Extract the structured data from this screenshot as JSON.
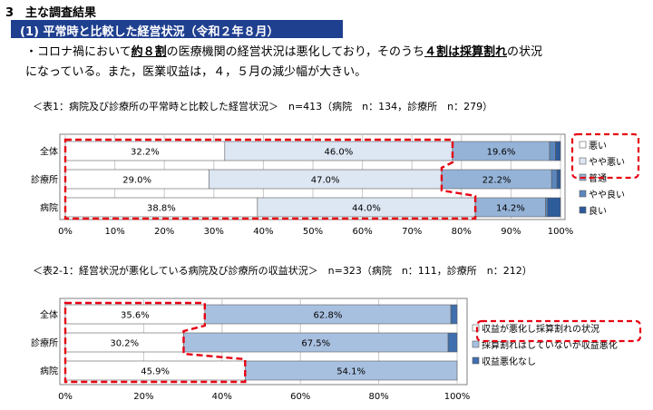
{
  "section": {
    "title": "3　主な調査結果"
  },
  "subheading": "(1) 平常時と比較した経営状況（令和２年８月）",
  "summary": {
    "line1_parts": [
      "・コロナ禍において",
      "約８割",
      "の医療機関の経営状況は悪化しており，そのうち",
      "４割は採算割れ",
      "の状況"
    ],
    "line2": "になっている。また，医業収益は，４，５月の減少幅が大きい。"
  },
  "chart_data": [
    {
      "type": "bar",
      "orientation": "horizontal",
      "stacked": true,
      "title": "＜表1：病院及び診療所の平常時と比較した経営状況＞　n=413（病院　n：134，診療所　n：279）",
      "categories": [
        "全体",
        "診療所",
        "病院"
      ],
      "series": [
        {
          "name": "悪い",
          "color": "#ffffff",
          "values": [
            32.2,
            29.0,
            38.8
          ]
        },
        {
          "name": "やや悪い",
          "color": "#dde6f3",
          "values": [
            46.0,
            47.0,
            44.0
          ]
        },
        {
          "name": "普通",
          "color": "#95b3d7",
          "values": [
            19.6,
            22.2,
            14.2
          ]
        },
        {
          "name": "やや良い",
          "color": "#5b86bd",
          "values": [
            1.2,
            1.1,
            0.4
          ]
        },
        {
          "name": "良い",
          "color": "#2e5b9a",
          "values": [
            1.0,
            0.7,
            2.6
          ]
        }
      ],
      "data_labels": [
        [
          "32.2%",
          "46.0%",
          "19.6%"
        ],
        [
          "29.0%",
          "47.0%",
          "22.2%"
        ],
        [
          "38.8%",
          "44.0%",
          "14.2%"
        ]
      ],
      "xlim": [
        0,
        100
      ],
      "xticks": [
        "0%",
        "10%",
        "20%",
        "30%",
        "40%",
        "50%",
        "60%",
        "70%",
        "80%",
        "90%",
        "100%"
      ],
      "grid": true,
      "legend": "right",
      "highlight": "red-dashed outline around 悪い + やや悪い (bars and legend)"
    },
    {
      "type": "bar",
      "orientation": "horizontal",
      "stacked": true,
      "title": "＜表2-1：経営状況が悪化している病院及び診療所の収益状況＞　n=323（病院　n：111，診療所　n：212）",
      "categories": [
        "全体",
        "診療所",
        "病院"
      ],
      "series": [
        {
          "name": "収益が悪化し採算割れの状況",
          "color": "#ffffff",
          "values": [
            35.6,
            30.2,
            45.9
          ]
        },
        {
          "name": "採算割れはしていないが収益悪化",
          "color": "#a8c0e0",
          "values": [
            62.8,
            67.5,
            54.1
          ]
        },
        {
          "name": "収益悪化なし",
          "color": "#3f6fae",
          "values": [
            1.6,
            2.3,
            0.0
          ]
        }
      ],
      "data_labels": [
        [
          "35.6%",
          "62.8%"
        ],
        [
          "30.2%",
          "67.5%"
        ],
        [
          "45.9%",
          "54.1%"
        ]
      ],
      "xlim": [
        0,
        100
      ],
      "xticks": [
        "0%",
        "20%",
        "40%",
        "60%",
        "80%",
        "100%"
      ],
      "grid": true,
      "legend": "right",
      "highlight": "red-dashed outline around 収益が悪化し採算割れの状況 (bars and legend)"
    }
  ]
}
